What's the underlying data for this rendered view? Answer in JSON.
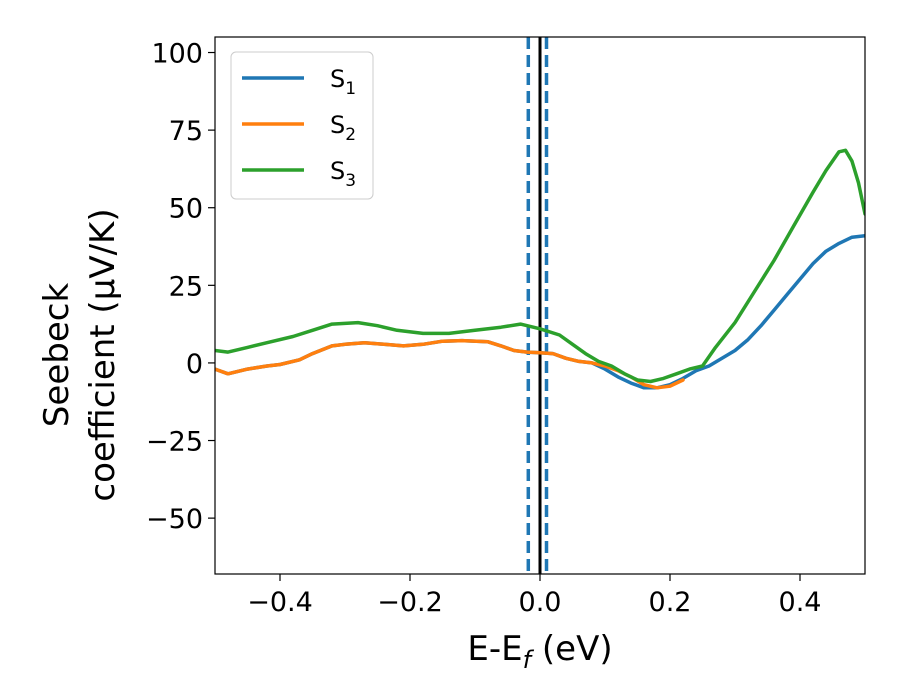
{
  "chart_data": {
    "type": "line",
    "title": "",
    "xlabel": {
      "main": "E-E",
      "sub": "f",
      "unit": " (eV)"
    },
    "ylabel": {
      "line1": "Seebeck",
      "line2": "coefficient  (μV/K)"
    },
    "xlim": [
      -0.5,
      0.5
    ],
    "ylim": [
      -68,
      105
    ],
    "xticks": [
      -0.4,
      -0.2,
      0.0,
      0.2,
      0.4
    ],
    "xtick_labels": [
      "−0.4",
      "−0.2",
      "0.0",
      "0.2",
      "0.4"
    ],
    "yticks": [
      -50,
      -25,
      0,
      25,
      50,
      75,
      100
    ],
    "ytick_labels": [
      "−50",
      "−25",
      "0",
      "25",
      "50",
      "75",
      "100"
    ],
    "grid": false,
    "legend_position": "top-left",
    "vlines": [
      {
        "x": -0.018,
        "style": "dashed",
        "color": "#1f77b4"
      },
      {
        "x": 0.0,
        "style": "solid",
        "color": "#000000"
      },
      {
        "x": 0.01,
        "style": "dashed",
        "color": "#1f77b4"
      }
    ],
    "series": [
      {
        "name": "S",
        "sub": "1",
        "color": "#1f77b4",
        "points": [
          [
            -0.5,
            -2
          ],
          [
            -0.48,
            -3.5
          ],
          [
            -0.45,
            -2
          ],
          [
            -0.42,
            -1
          ],
          [
            -0.4,
            -0.5
          ],
          [
            -0.37,
            1
          ],
          [
            -0.35,
            3
          ],
          [
            -0.32,
            5.5
          ],
          [
            -0.3,
            6
          ],
          [
            -0.27,
            6.5
          ],
          [
            -0.24,
            6
          ],
          [
            -0.21,
            5.5
          ],
          [
            -0.18,
            6
          ],
          [
            -0.15,
            7
          ],
          [
            -0.12,
            7.2
          ],
          [
            -0.08,
            6.8
          ],
          [
            -0.06,
            5.5
          ],
          [
            -0.04,
            4
          ],
          [
            -0.02,
            3.5
          ],
          [
            0.0,
            3.3
          ],
          [
            0.02,
            3
          ],
          [
            0.04,
            1.5
          ],
          [
            0.06,
            0.5
          ],
          [
            0.08,
            0
          ],
          [
            0.1,
            -2
          ],
          [
            0.12,
            -4.5
          ],
          [
            0.14,
            -6.5
          ],
          [
            0.16,
            -8
          ],
          [
            0.18,
            -8
          ],
          [
            0.2,
            -7
          ],
          [
            0.22,
            -5
          ],
          [
            0.24,
            -2.5
          ],
          [
            0.26,
            -1
          ],
          [
            0.28,
            1.5
          ],
          [
            0.3,
            4
          ],
          [
            0.32,
            7.5
          ],
          [
            0.34,
            12
          ],
          [
            0.36,
            17
          ],
          [
            0.38,
            22
          ],
          [
            0.4,
            27
          ],
          [
            0.42,
            32
          ],
          [
            0.44,
            36
          ],
          [
            0.46,
            38.5
          ],
          [
            0.48,
            40.5
          ],
          [
            0.5,
            41
          ]
        ]
      },
      {
        "name": "S",
        "sub": "2",
        "color": "#ff7f0e",
        "points": [
          [
            -0.5,
            -2
          ],
          [
            -0.48,
            -3.5
          ],
          [
            -0.45,
            -2
          ],
          [
            -0.42,
            -1
          ],
          [
            -0.4,
            -0.5
          ],
          [
            -0.37,
            1
          ],
          [
            -0.35,
            3
          ],
          [
            -0.32,
            5.5
          ],
          [
            -0.3,
            6
          ],
          [
            -0.27,
            6.5
          ],
          [
            -0.24,
            6
          ],
          [
            -0.21,
            5.5
          ],
          [
            -0.18,
            6
          ],
          [
            -0.15,
            7
          ],
          [
            -0.12,
            7.2
          ],
          [
            -0.08,
            6.8
          ],
          [
            -0.06,
            5.5
          ],
          [
            -0.04,
            4
          ],
          [
            -0.02,
            3.5
          ],
          [
            0.0,
            3.3
          ],
          [
            0.02,
            3
          ],
          [
            0.04,
            1.5
          ],
          [
            0.06,
            0.5
          ],
          [
            0.08,
            0
          ],
          [
            0.1,
            -1
          ],
          [
            0.12,
            -2.5
          ],
          [
            0.14,
            -4.5
          ],
          [
            0.16,
            -7
          ],
          [
            0.18,
            -8
          ],
          [
            0.2,
            -7.5
          ],
          [
            0.22,
            -5.5
          ]
        ]
      },
      {
        "name": "S",
        "sub": "3",
        "color": "#2ca02c",
        "points": [
          [
            -0.5,
            4
          ],
          [
            -0.48,
            3.5
          ],
          [
            -0.45,
            5
          ],
          [
            -0.42,
            6.5
          ],
          [
            -0.38,
            8.5
          ],
          [
            -0.35,
            10.5
          ],
          [
            -0.32,
            12.5
          ],
          [
            -0.28,
            13
          ],
          [
            -0.25,
            12
          ],
          [
            -0.22,
            10.5
          ],
          [
            -0.18,
            9.5
          ],
          [
            -0.14,
            9.5
          ],
          [
            -0.1,
            10.5
          ],
          [
            -0.06,
            11.5
          ],
          [
            -0.03,
            12.5
          ],
          [
            0.0,
            11
          ],
          [
            0.03,
            9
          ],
          [
            0.05,
            6
          ],
          [
            0.07,
            3
          ],
          [
            0.09,
            0.5
          ],
          [
            0.11,
            -1
          ],
          [
            0.13,
            -3.5
          ],
          [
            0.15,
            -5.5
          ],
          [
            0.17,
            -6
          ],
          [
            0.19,
            -5
          ],
          [
            0.21,
            -3.5
          ],
          [
            0.23,
            -2
          ],
          [
            0.25,
            -1
          ],
          [
            0.27,
            5
          ],
          [
            0.3,
            13
          ],
          [
            0.33,
            23
          ],
          [
            0.36,
            33
          ],
          [
            0.39,
            44
          ],
          [
            0.42,
            55
          ],
          [
            0.44,
            62
          ],
          [
            0.46,
            68
          ],
          [
            0.47,
            68.5
          ],
          [
            0.48,
            65
          ],
          [
            0.49,
            58
          ],
          [
            0.5,
            48
          ]
        ]
      }
    ]
  }
}
